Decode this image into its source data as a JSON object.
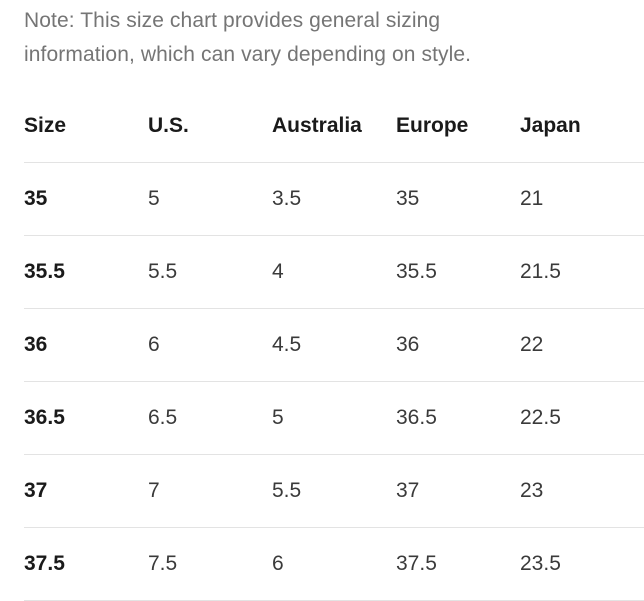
{
  "note": "Note: This size chart provides general sizing information, which can vary depending on style.",
  "table": {
    "headers": [
      "Size",
      "U.S.",
      "Australia",
      "Europe",
      "Japan"
    ],
    "rows": [
      [
        "35",
        "5",
        "3.5",
        "35",
        "21"
      ],
      [
        "35.5",
        "5.5",
        "4",
        "35.5",
        "21.5"
      ],
      [
        "36",
        "6",
        "4.5",
        "36",
        "22"
      ],
      [
        "36.5",
        "6.5",
        "5",
        "36.5",
        "22.5"
      ],
      [
        "37",
        "7",
        "5.5",
        "37",
        "23"
      ],
      [
        "37.5",
        "7.5",
        "6",
        "37.5",
        "23.5"
      ]
    ]
  }
}
